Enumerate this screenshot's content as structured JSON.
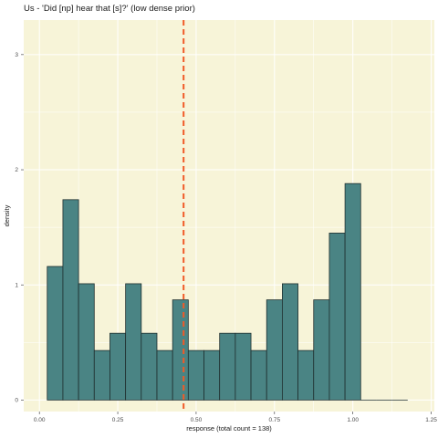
{
  "chart_data": {
    "type": "bar",
    "title": "Us - 'Did [np] hear that [s]?' (low dense prior)",
    "xlabel": "response (total count = 138)",
    "ylabel": "density",
    "xlim": [
      -0.05,
      1.26
    ],
    "ylim": [
      -0.1,
      3.3
    ],
    "x_ticks": [
      0.0,
      0.25,
      0.5,
      0.75,
      1.0,
      1.25
    ],
    "x_tick_labels": [
      "0.00",
      "0.25",
      "0.50",
      "0.75",
      "1.00",
      "1.25"
    ],
    "y_ticks": [
      0,
      1,
      2,
      3
    ],
    "y_tick_labels": [
      "0",
      "1",
      "2",
      "3"
    ],
    "bin_width": 0.05,
    "bins": [
      {
        "x0": 0.025,
        "x1": 0.075,
        "density": 1.16
      },
      {
        "x0": 0.075,
        "x1": 0.125,
        "density": 1.74
      },
      {
        "x0": 0.125,
        "x1": 0.175,
        "density": 1.01
      },
      {
        "x0": 0.175,
        "x1": 0.225,
        "density": 0.43
      },
      {
        "x0": 0.225,
        "x1": 0.275,
        "density": 0.58
      },
      {
        "x0": 0.275,
        "x1": 0.325,
        "density": 1.01
      },
      {
        "x0": 0.325,
        "x1": 0.375,
        "density": 0.58
      },
      {
        "x0": 0.375,
        "x1": 0.425,
        "density": 0.43
      },
      {
        "x0": 0.425,
        "x1": 0.475,
        "density": 0.87
      },
      {
        "x0": 0.475,
        "x1": 0.525,
        "density": 0.43
      },
      {
        "x0": 0.525,
        "x1": 0.575,
        "density": 0.43
      },
      {
        "x0": 0.575,
        "x1": 0.625,
        "density": 0.58
      },
      {
        "x0": 0.625,
        "x1": 0.675,
        "density": 0.58
      },
      {
        "x0": 0.675,
        "x1": 0.725,
        "density": 0.43
      },
      {
        "x0": 0.725,
        "x1": 0.775,
        "density": 0.87
      },
      {
        "x0": 0.775,
        "x1": 0.825,
        "density": 1.01
      },
      {
        "x0": 0.825,
        "x1": 0.875,
        "density": 0.43
      },
      {
        "x0": 0.875,
        "x1": 0.925,
        "density": 0.87
      },
      {
        "x0": 0.925,
        "x1": 0.975,
        "density": 1.45
      },
      {
        "x0": 0.975,
        "x1": 1.025,
        "density": 1.88
      },
      {
        "x0": 1.025,
        "x1": 1.075,
        "density": 0
      },
      {
        "x0": 1.075,
        "x1": 1.125,
        "density": 0
      },
      {
        "x0": 1.125,
        "x1": 1.175,
        "density": 0
      }
    ],
    "reference_line": {
      "x": 0.46,
      "orientation": "vertical",
      "style": "dashed",
      "color": "#f05a28"
    },
    "grid": true,
    "colors": {
      "panel_background": "#f7f4d8",
      "grid": "#ffffff",
      "bar_fill": "#4a8484",
      "bar_stroke": "#1f2f2f"
    }
  }
}
